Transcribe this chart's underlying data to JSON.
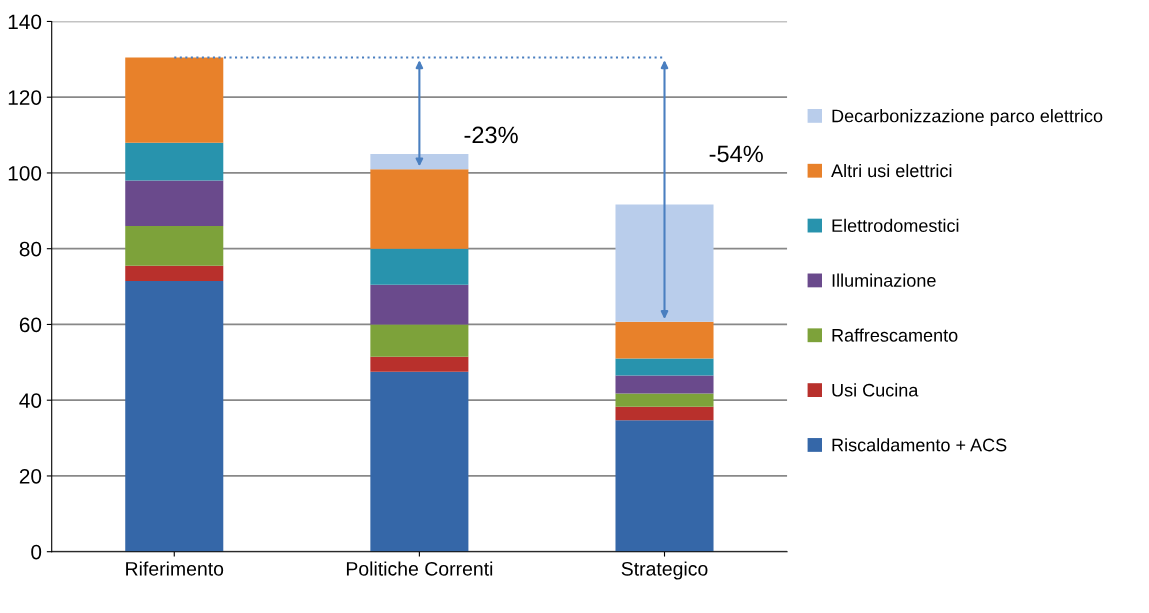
{
  "chart_data": {
    "type": "bar",
    "stacked": true,
    "categories": [
      "Riferimento",
      "Politiche Correnti",
      "Strategico"
    ],
    "series": [
      {
        "name": "Riscaldamento + ACS",
        "color": "#3567a8",
        "values": [
          71.5,
          47.5,
          34.7
        ]
      },
      {
        "name": "Usi Cucina",
        "color": "#b8302c",
        "values": [
          4,
          4,
          3.6
        ]
      },
      {
        "name": "Raffrescamento",
        "color": "#7da23a",
        "values": [
          10.5,
          8.5,
          3.5
        ]
      },
      {
        "name": "Illuminazione",
        "color": "#6a4a8c",
        "values": [
          12,
          10.5,
          4.7
        ]
      },
      {
        "name": "Elettrodomestici",
        "color": "#2893ad",
        "values": [
          10,
          9.5,
          4.5
        ]
      },
      {
        "name": "Altri usi elettrici",
        "color": "#e8812a",
        "values": [
          22.5,
          21,
          9.7
        ]
      },
      {
        "name": "Decarbonizzazione parco elettrico",
        "color": "#b9cdeb",
        "values": [
          0,
          4,
          31
        ]
      }
    ],
    "ylim": [
      0,
      140
    ],
    "yticks": [
      0,
      20,
      40,
      60,
      80,
      100,
      120,
      140
    ],
    "grid": "y",
    "legend": "right",
    "ref_lines": [
      {
        "axis": "y",
        "value": 130.5,
        "color": "#4a7fc0",
        "line_style": "dotted"
      }
    ],
    "annotations": [
      "-23%",
      "-54%"
    ]
  }
}
